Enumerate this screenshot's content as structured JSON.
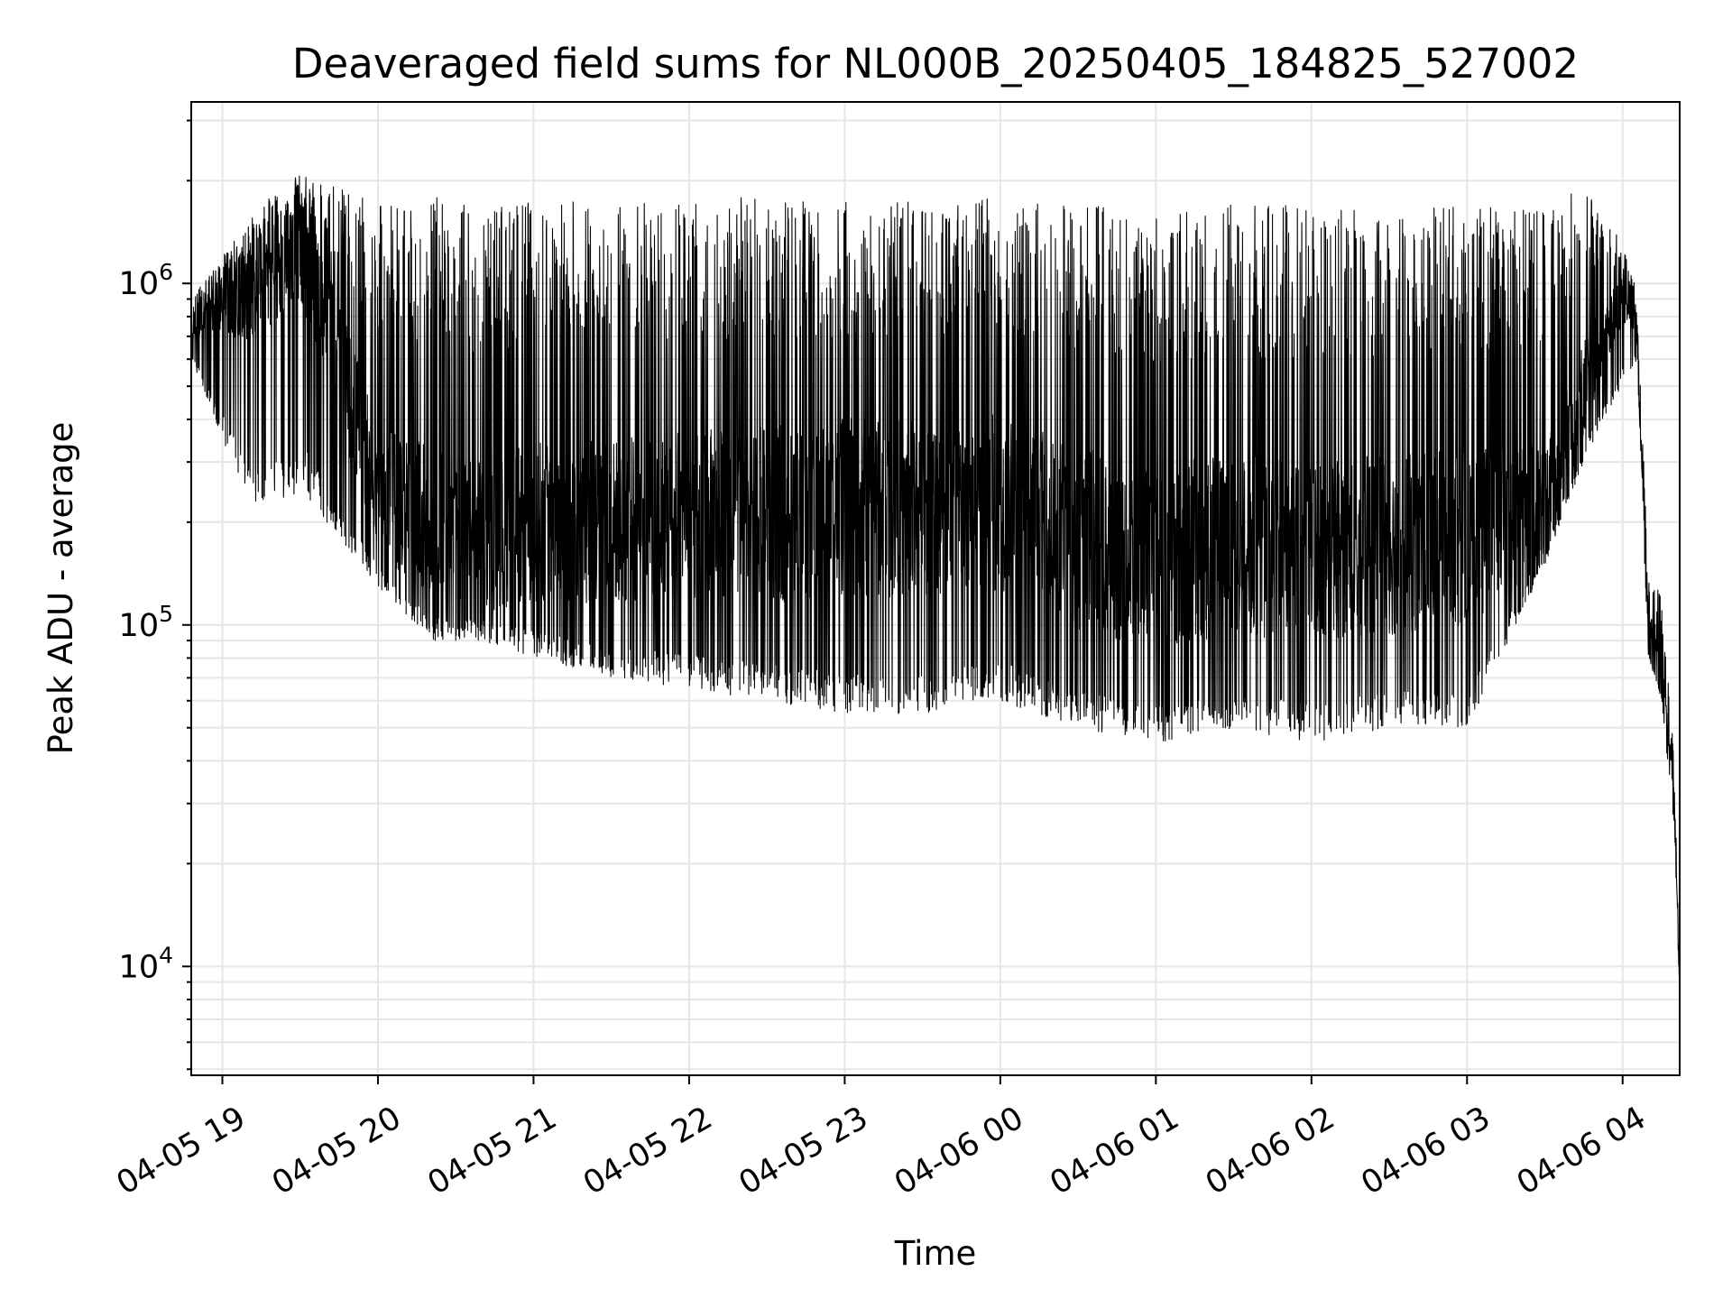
{
  "chart_data": {
    "type": "line",
    "title": "Deaveraged field sums for NL000B_20250405_184825_527002",
    "xlabel": "Time",
    "ylabel": "Peak ADU - average",
    "yscale": "log",
    "ylim": [
      4800,
      3400000
    ],
    "xlim": [
      "2025-04-05 18:48",
      "2025-04-06 04:22"
    ],
    "grid": true,
    "line_color": "#000000",
    "grid_color": "#e6e6e6",
    "x_ticks": [
      {
        "value": "2025-04-05 19:00",
        "label": "04-05 19"
      },
      {
        "value": "2025-04-05 20:00",
        "label": "04-05 20"
      },
      {
        "value": "2025-04-05 21:00",
        "label": "04-05 21"
      },
      {
        "value": "2025-04-05 22:00",
        "label": "04-05 22"
      },
      {
        "value": "2025-04-05 23:00",
        "label": "04-05 23"
      },
      {
        "value": "2025-04-06 00:00",
        "label": "04-06 00"
      },
      {
        "value": "2025-04-06 01:00",
        "label": "04-06 01"
      },
      {
        "value": "2025-04-06 02:00",
        "label": "04-06 02"
      },
      {
        "value": "2025-04-06 03:00",
        "label": "04-06 03"
      },
      {
        "value": "2025-04-06 04:00",
        "label": "04-06 04"
      }
    ],
    "y_ticks": [
      {
        "value": 10000,
        "base": "10",
        "exponent": "4"
      },
      {
        "value": 100000,
        "base": "10",
        "exponent": "5"
      },
      {
        "value": 1000000,
        "base": "10",
        "exponent": "6"
      }
    ],
    "envelope": {
      "description_note": "",
      "x": [
        "2025-04-05 18:48",
        "2025-04-05 19:00",
        "2025-04-05 19:15",
        "2025-04-05 19:30",
        "2025-04-05 19:45",
        "2025-04-05 20:00",
        "2025-04-05 20:20",
        "2025-04-05 20:40",
        "2025-04-05 21:00",
        "2025-04-05 21:30",
        "2025-04-05 22:00",
        "2025-04-05 22:30",
        "2025-04-05 23:00",
        "2025-04-05 23:30",
        "2025-04-06 00:00",
        "2025-04-06 00:30",
        "2025-04-06 01:00",
        "2025-04-06 01:30",
        "2025-04-06 02:00",
        "2025-04-06 02:30",
        "2025-04-06 03:00",
        "2025-04-06 03:30",
        "2025-04-06 03:45",
        "2025-04-06 04:00",
        "2025-04-06 04:05",
        "2025-04-06 04:10",
        "2025-04-06 04:15",
        "2025-04-06 04:20",
        "2025-04-06 04:22"
      ],
      "upper": [
        900000,
        1200000,
        1700000,
        2100000,
        1900000,
        1700000,
        1800000,
        1700000,
        1750000,
        1750000,
        1750000,
        1800000,
        1750000,
        1750000,
        1800000,
        1750000,
        1650000,
        1700000,
        1700000,
        1650000,
        1700000,
        1650000,
        2000000,
        1300000,
        1000000,
        150000,
        120000,
        40000,
        9000
      ],
      "lower": [
        600000,
        350000,
        200000,
        250000,
        180000,
        130000,
        90000,
        90000,
        80000,
        70000,
        65000,
        60000,
        55000,
        55000,
        60000,
        50000,
        45000,
        50000,
        45000,
        50000,
        50000,
        150000,
        300000,
        500000,
        600000,
        80000,
        60000,
        25000,
        8000
      ],
      "median": [
        750000,
        850000,
        1000000,
        1300000,
        600000,
        250000,
        200000,
        180000,
        200000,
        200000,
        210000,
        210000,
        220000,
        220000,
        230000,
        180000,
        160000,
        170000,
        170000,
        170000,
        180000,
        220000,
        500000,
        900000,
        800000,
        100000,
        80000,
        30000,
        8500
      ]
    }
  }
}
